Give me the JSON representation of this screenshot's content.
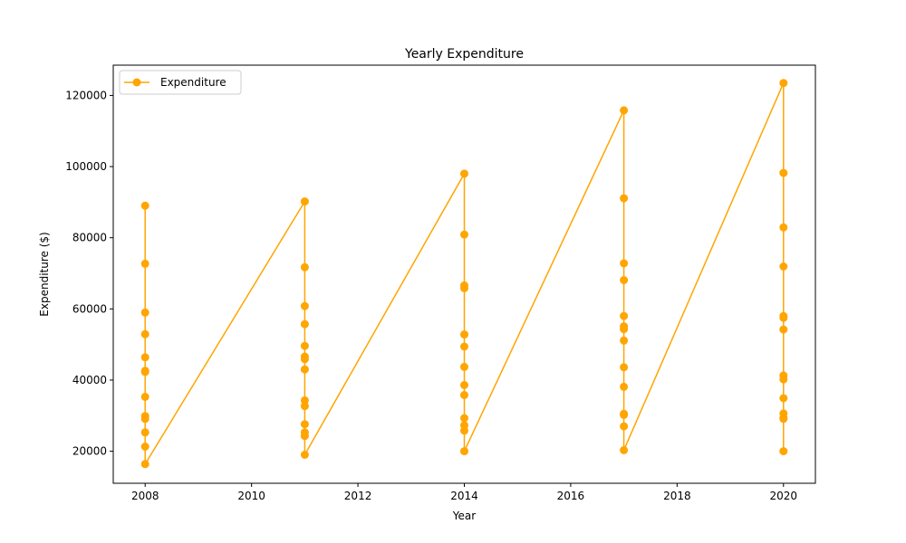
{
  "chart_data": {
    "type": "line",
    "title": "Yearly Expenditure",
    "xlabel": "Year",
    "ylabel": "Expenditure ($)",
    "xlim": [
      2007.4,
      2020.6
    ],
    "ylim": [
      11000,
      128500
    ],
    "xticks": [
      2008,
      2010,
      2012,
      2014,
      2016,
      2018,
      2020
    ],
    "yticks": [
      20000,
      40000,
      60000,
      80000,
      100000,
      120000
    ],
    "grid": false,
    "legend_position": "top-left",
    "series": [
      {
        "name": "Expenditure",
        "color": "#ffa500",
        "marker": "circle",
        "points": [
          [
            2008,
            89000
          ],
          [
            2008,
            72700
          ],
          [
            2008,
            59000
          ],
          [
            2008,
            52900
          ],
          [
            2008,
            46400
          ],
          [
            2008,
            42600
          ],
          [
            2008,
            42300
          ],
          [
            2008,
            35300
          ],
          [
            2008,
            29900
          ],
          [
            2008,
            29100
          ],
          [
            2008,
            25300
          ],
          [
            2008,
            21300
          ],
          [
            2008,
            16400
          ],
          [
            2011,
            90200
          ],
          [
            2011,
            71700
          ],
          [
            2011,
            60800
          ],
          [
            2011,
            55700
          ],
          [
            2011,
            49600
          ],
          [
            2011,
            46600
          ],
          [
            2011,
            45900
          ],
          [
            2011,
            43000
          ],
          [
            2011,
            34300
          ],
          [
            2011,
            32700
          ],
          [
            2011,
            27600
          ],
          [
            2011,
            25300
          ],
          [
            2011,
            24300
          ],
          [
            2011,
            19000
          ],
          [
            2014,
            98000
          ],
          [
            2014,
            80900
          ],
          [
            2014,
            66600
          ],
          [
            2014,
            65800
          ],
          [
            2014,
            52800
          ],
          [
            2014,
            49400
          ],
          [
            2014,
            43700
          ],
          [
            2014,
            38600
          ],
          [
            2014,
            35800
          ],
          [
            2014,
            29300
          ],
          [
            2014,
            27300
          ],
          [
            2014,
            25800
          ],
          [
            2014,
            20000
          ],
          [
            2017,
            115800
          ],
          [
            2017,
            91100
          ],
          [
            2017,
            72800
          ],
          [
            2017,
            68100
          ],
          [
            2017,
            58000
          ],
          [
            2017,
            55100
          ],
          [
            2017,
            54300
          ],
          [
            2017,
            51100
          ],
          [
            2017,
            43600
          ],
          [
            2017,
            38100
          ],
          [
            2017,
            30500
          ],
          [
            2017,
            30200
          ],
          [
            2017,
            27000
          ],
          [
            2017,
            20300
          ],
          [
            2020,
            123500
          ],
          [
            2020,
            98200
          ],
          [
            2020,
            82900
          ],
          [
            2020,
            71900
          ],
          [
            2020,
            58000
          ],
          [
            2020,
            57500
          ],
          [
            2020,
            54200
          ],
          [
            2020,
            41300
          ],
          [
            2020,
            40200
          ],
          [
            2020,
            34900
          ],
          [
            2020,
            30600
          ],
          [
            2020,
            29400
          ],
          [
            2020,
            29100
          ],
          [
            2020,
            20000
          ]
        ]
      }
    ]
  }
}
